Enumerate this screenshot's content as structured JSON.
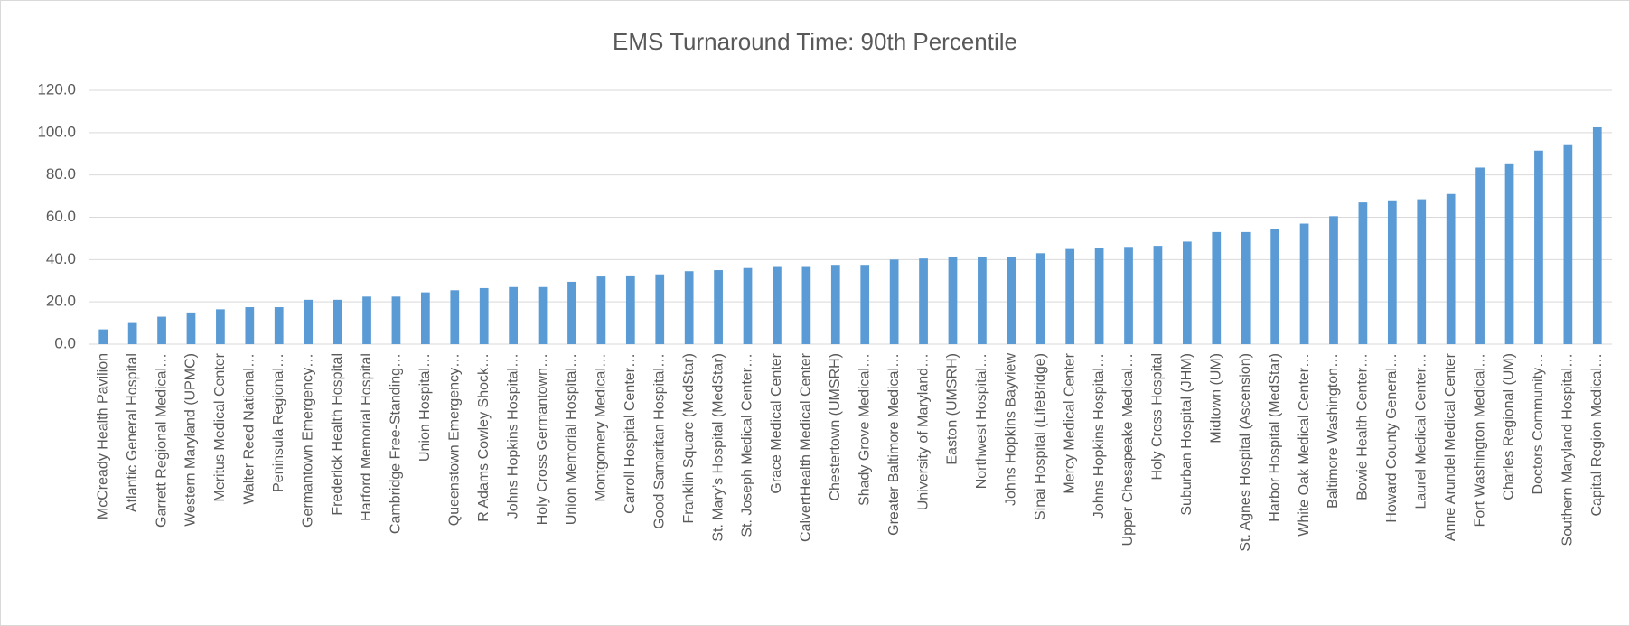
{
  "chart_data": {
    "type": "bar",
    "title": "EMS Turnaround Time:  90th Percentile",
    "categories": [
      "McCready Health Pavilion",
      "Atlantic General Hospital",
      "Garrett Regional Medical…",
      "Western Maryland (UPMC)",
      "Meritus Medical Center",
      "Walter Reed National…",
      "Peninsula Regional…",
      "Germantown Emergency…",
      "Frederick Health Hospital",
      "Harford Memorial Hospital",
      "Cambridge Free-Standing…",
      "Union Hospital…",
      "Queenstown Emergency…",
      "R Adams Cowley Shock…",
      "Johns Hopkins Hospital…",
      "Holy Cross Germantown…",
      "Union Memorial Hospital…",
      "Montgomery Medical…",
      "Carroll Hospital Center…",
      "Good Samaritan Hospital…",
      "Franklin Square (MedStar)",
      "St. Mary’s Hospital (MedStar)",
      "St. Joseph Medical Center…",
      "Grace Medical Center",
      "CalvertHealth Medical Center",
      "Chestertown (UMSRH)",
      "Shady Grove Medical…",
      "Greater Baltimore Medical…",
      "University of Maryland…",
      "Easton (UMSRH)",
      "Northwest Hospital…",
      "Johns Hopkins Bayview",
      "Sinai Hospital (LifeBridge)",
      "Mercy Medical Center",
      "Johns Hopkins Hospital…",
      "Upper Chesapeake Medical…",
      "Holy Cross Hospital",
      "Suburban Hospital (JHM)",
      "Midtown (UM)",
      "St. Agnes Hospital (Ascension)",
      "Harbor Hospital (MedStar)",
      "White Oak Medical Center…",
      "Baltimore Washington…",
      "Bowie Health Center…",
      "Howard County General…",
      "Laurel Medical Center…",
      "Anne Arundel Medical Center",
      "Fort Washington Medical…",
      "Charles Regional (UM)",
      "Doctors Community…",
      "Southern Maryland Hospital…",
      "Capital Region Medical…"
    ],
    "values": [
      7,
      10,
      13,
      15,
      16.5,
      17.5,
      17.5,
      21,
      21,
      22.5,
      22.5,
      24.5,
      25.5,
      26.5,
      27,
      27,
      29.5,
      32,
      32.5,
      33,
      34.5,
      35,
      36,
      36.5,
      36.5,
      37.5,
      37.5,
      40,
      40.5,
      41,
      41,
      41,
      43,
      45,
      45.5,
      46,
      46.5,
      48.5,
      53,
      53,
      54.5,
      57,
      60.5,
      67,
      68,
      68.5,
      71,
      83.5,
      85.5,
      91.5,
      94.5,
      102.5
    ],
    "color": "#5b9bd5",
    "ylim": [
      0,
      120
    ],
    "yticks": [
      {
        "value": 0,
        "label": "0.0"
      },
      {
        "value": 20,
        "label": "20.0"
      },
      {
        "value": 40,
        "label": "40.0"
      },
      {
        "value": 60,
        "label": "60.0"
      },
      {
        "value": 80,
        "label": "80.0"
      },
      {
        "value": 100,
        "label": "100.0"
      },
      {
        "value": 120,
        "label": "120.0"
      }
    ],
    "grid": true
  }
}
